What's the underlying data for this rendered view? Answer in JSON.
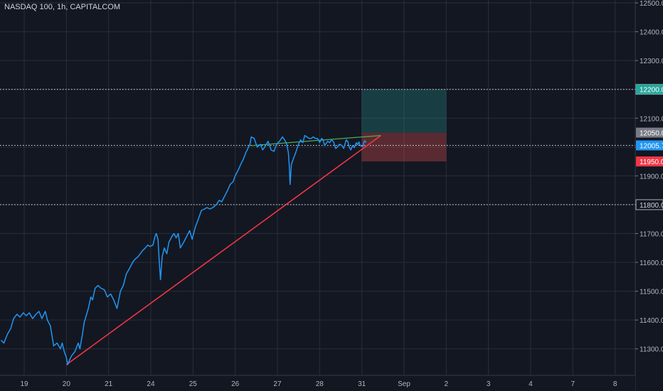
{
  "chart_data": {
    "type": "line",
    "title": "NASDAQ 100, 1h, CAPITALCOM",
    "colors": {
      "background": "#131722",
      "grid": "#2a2e39",
      "axis_text": "#b2b5be",
      "price_line": "#2196f3",
      "support_line": "#f23645",
      "resistance_line": "#4caf50",
      "target_zone": "#26a69a",
      "stop_zone": "#ef5350"
    },
    "x_axis": {
      "ticks": [
        {
          "label": "19",
          "x": 0
        },
        {
          "label": "20",
          "x": 1
        },
        {
          "label": "21",
          "x": 2
        },
        {
          "label": "24",
          "x": 3
        },
        {
          "label": "25",
          "x": 4
        },
        {
          "label": "26",
          "x": 5
        },
        {
          "label": "27",
          "x": 6
        },
        {
          "label": "28",
          "x": 7
        },
        {
          "label": "31",
          "x": 8
        },
        {
          "label": "Sep",
          "x": 9
        },
        {
          "label": "2",
          "x": 10
        },
        {
          "label": "3",
          "x": 11
        },
        {
          "label": "4",
          "x": 12
        },
        {
          "label": "7",
          "x": 13
        },
        {
          "label": "8",
          "x": 14
        }
      ]
    },
    "y_axis": {
      "range": [
        11208,
        12510
      ],
      "ticks": [
        "11300.0",
        "11400.0",
        "11500.0",
        "11600.0",
        "11700.0",
        "11800.0",
        "11900.0",
        "12000.0",
        "12100.0",
        "12200.0",
        "12300.0",
        "12400.0",
        "12500.0"
      ]
    },
    "series": [
      {
        "values": [
          [
            -0.55,
            11330
          ],
          [
            -0.48,
            11320
          ],
          [
            -0.4,
            11350
          ],
          [
            -0.32,
            11370
          ],
          [
            -0.25,
            11405
          ],
          [
            -0.17,
            11420
          ],
          [
            -0.1,
            11410
          ],
          [
            -0.02,
            11425
          ],
          [
            0.05,
            11415
          ],
          [
            0.12,
            11425
          ],
          [
            0.2,
            11405
          ],
          [
            0.28,
            11420
          ],
          [
            0.35,
            11430
          ],
          [
            0.42,
            11405
          ],
          [
            0.5,
            11430
          ],
          [
            0.55,
            11400
          ],
          [
            0.62,
            11380
          ],
          [
            0.7,
            11310
          ],
          [
            0.78,
            11320
          ],
          [
            0.86,
            11300
          ],
          [
            0.9,
            11320
          ],
          [
            0.95,
            11290
          ],
          [
            1.0,
            11270
          ],
          [
            1.03,
            11245
          ],
          [
            1.07,
            11260
          ],
          [
            1.12,
            11275
          ],
          [
            1.2,
            11290
          ],
          [
            1.28,
            11320
          ],
          [
            1.32,
            11300
          ],
          [
            1.38,
            11350
          ],
          [
            1.42,
            11390
          ],
          [
            1.48,
            11420
          ],
          [
            1.52,
            11440
          ],
          [
            1.58,
            11480
          ],
          [
            1.62,
            11470
          ],
          [
            1.68,
            11510
          ],
          [
            1.75,
            11520
          ],
          [
            1.82,
            11510
          ],
          [
            1.9,
            11505
          ],
          [
            1.97,
            11480
          ],
          [
            2.05,
            11490
          ],
          [
            2.12,
            11470
          ],
          [
            2.2,
            11440
          ],
          [
            2.28,
            11500
          ],
          [
            2.35,
            11520
          ],
          [
            2.42,
            11560
          ],
          [
            2.5,
            11580
          ],
          [
            2.57,
            11600
          ],
          [
            2.62,
            11610
          ],
          [
            2.7,
            11620
          ],
          [
            2.75,
            11630
          ],
          [
            2.8,
            11640
          ],
          [
            2.87,
            11650
          ],
          [
            2.93,
            11660
          ],
          [
            2.98,
            11655
          ],
          [
            3.05,
            11660
          ],
          [
            3.1,
            11690
          ],
          [
            3.13,
            11700
          ],
          [
            3.17,
            11680
          ],
          [
            3.2,
            11600
          ],
          [
            3.23,
            11540
          ],
          [
            3.27,
            11620
          ],
          [
            3.32,
            11650
          ],
          [
            3.38,
            11630
          ],
          [
            3.43,
            11670
          ],
          [
            3.5,
            11690
          ],
          [
            3.55,
            11700
          ],
          [
            3.6,
            11685
          ],
          [
            3.65,
            11700
          ],
          [
            3.7,
            11650
          ],
          [
            3.78,
            11670
          ],
          [
            3.85,
            11690
          ],
          [
            3.92,
            11710
          ],
          [
            3.98,
            11680
          ],
          [
            4.05,
            11720
          ],
          [
            4.1,
            11740
          ],
          [
            4.15,
            11760
          ],
          [
            4.2,
            11780
          ],
          [
            4.27,
            11785
          ],
          [
            4.33,
            11790
          ],
          [
            4.4,
            11785
          ],
          [
            4.47,
            11790
          ],
          [
            4.55,
            11800
          ],
          [
            4.62,
            11815
          ],
          [
            4.68,
            11810
          ],
          [
            4.75,
            11830
          ],
          [
            4.82,
            11850
          ],
          [
            4.88,
            11870
          ],
          [
            4.95,
            11880
          ],
          [
            5.0,
            11900
          ],
          [
            5.07,
            11920
          ],
          [
            5.13,
            11940
          ],
          [
            5.2,
            11960
          ],
          [
            5.25,
            11980
          ],
          [
            5.3,
            11995
          ],
          [
            5.35,
            12010
          ],
          [
            5.38,
            12035
          ],
          [
            5.45,
            12030
          ],
          [
            5.52,
            12000
          ],
          [
            5.6,
            12010
          ],
          [
            5.65,
            11990
          ],
          [
            5.7,
            12000
          ],
          [
            5.78,
            12020
          ],
          [
            5.85,
            11990
          ],
          [
            5.92,
            11985
          ],
          [
            5.98,
            12010
          ],
          [
            6.05,
            12020
          ],
          [
            6.12,
            12035
          ],
          [
            6.17,
            12025
          ],
          [
            6.22,
            12010
          ],
          [
            6.26,
            11980
          ],
          [
            6.28,
            11938
          ],
          [
            6.3,
            11870
          ],
          [
            6.33,
            11940
          ],
          [
            6.38,
            11960
          ],
          [
            6.42,
            11975
          ],
          [
            6.5,
            12010
          ],
          [
            6.55,
            12025
          ],
          [
            6.6,
            12015
          ],
          [
            6.65,
            12040
          ],
          [
            6.7,
            12035
          ],
          [
            6.75,
            12030
          ],
          [
            6.8,
            12030
          ],
          [
            6.85,
            12035
          ],
          [
            6.9,
            12030
          ],
          [
            6.95,
            12030
          ],
          [
            6.99,
            12020
          ],
          [
            7.0,
            12015
          ],
          [
            7.05,
            12030
          ],
          [
            7.08,
            12025
          ],
          [
            7.12,
            12005
          ],
          [
            7.15,
            12012
          ],
          [
            7.19,
            12020
          ],
          [
            7.24,
            12015
          ],
          [
            7.28,
            12025
          ],
          [
            7.33,
            12018
          ],
          [
            7.38,
            11995
          ],
          [
            7.42,
            12000
          ],
          [
            7.47,
            12010
          ],
          [
            7.53,
            12005
          ],
          [
            7.57,
            11995
          ],
          [
            7.6,
            12010
          ],
          [
            7.63,
            12025
          ],
          [
            7.67,
            12018
          ],
          [
            7.7,
            12000
          ],
          [
            7.74,
            11990
          ],
          [
            7.78,
            12005
          ],
          [
            7.82,
            11998
          ],
          [
            7.87,
            12015
          ],
          [
            7.9,
            12008
          ],
          [
            7.93,
            12018
          ],
          [
            7.96,
            12005
          ],
          [
            8.0,
            12003
          ],
          [
            8.03,
            12003
          ],
          [
            8.05,
            12018
          ],
          [
            8.07,
            12022
          ],
          [
            8.1,
            12015
          ]
        ]
      }
    ],
    "drawings": {
      "support_trendline": {
        "from": [
          1.0,
          11245
        ],
        "to": [
          8.45,
          12040
        ]
      },
      "resistance_trendline": {
        "from": [
          5.38,
          12005
        ],
        "to": [
          8.45,
          12040
        ]
      },
      "horizontal_levels": [
        12200,
        12005.7,
        11800
      ],
      "long_position": {
        "x_start": 8.0,
        "x_end": 10.0,
        "entry": 12050,
        "target": 12200,
        "stop": 11950
      }
    },
    "price_labels": [
      {
        "text": "12200.0",
        "value": 12200,
        "color": "#26a69a"
      },
      {
        "text": "12050.0",
        "value": 12050,
        "color": "#787b86"
      },
      {
        "text": "12005.7",
        "value": 12005.7,
        "color": "#2196f3"
      },
      {
        "text": "11950.0",
        "value": 11950,
        "color": "#f23645"
      }
    ],
    "level_labels": [
      {
        "text": "12200.0",
        "value": 12200
      },
      {
        "text": "11800.0",
        "value": 11800
      }
    ],
    "grid": true
  }
}
